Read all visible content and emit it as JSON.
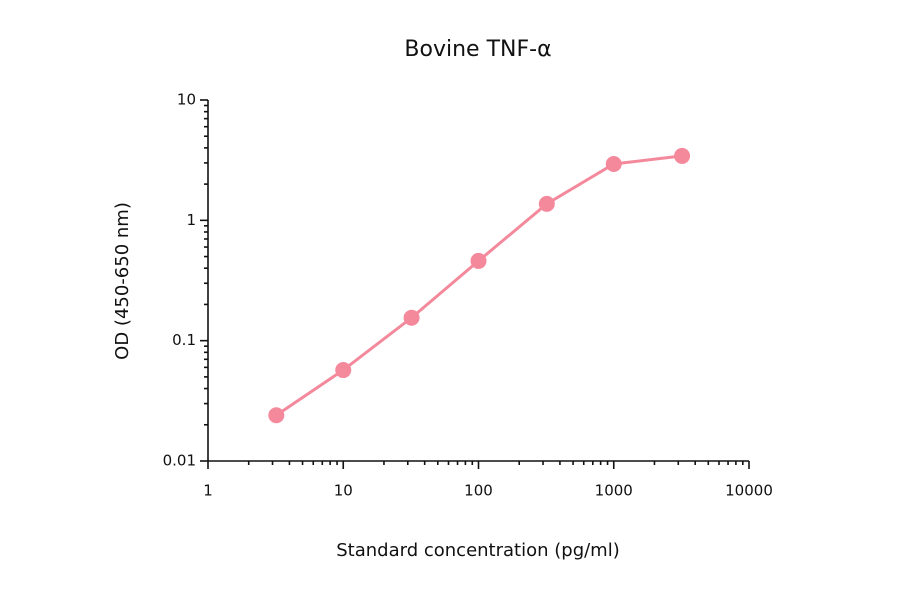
{
  "chart_data": {
    "type": "line",
    "title": "Bovine TNF-α",
    "x_label": "Standard concentration (pg/ml)",
    "y_label": "OD (450-650 nm)",
    "x": [
      3.2,
      10,
      32,
      100,
      320,
      1000,
      3200
    ],
    "series": [
      {
        "name": "Bovine TNF-α",
        "color": "#f4899c",
        "values": [
          0.024,
          0.057,
          0.155,
          0.46,
          1.37,
          2.94,
          3.43
        ]
      }
    ],
    "xlim": [
      1,
      10000
    ],
    "xticks": [
      1,
      10,
      100,
      1000,
      10000
    ],
    "ylim": [
      0.01,
      10
    ],
    "yticks": [
      0.01,
      0.1,
      1,
      10
    ],
    "xscale": "log",
    "yscale": "log",
    "minor_ticks": true,
    "grid": false
  }
}
